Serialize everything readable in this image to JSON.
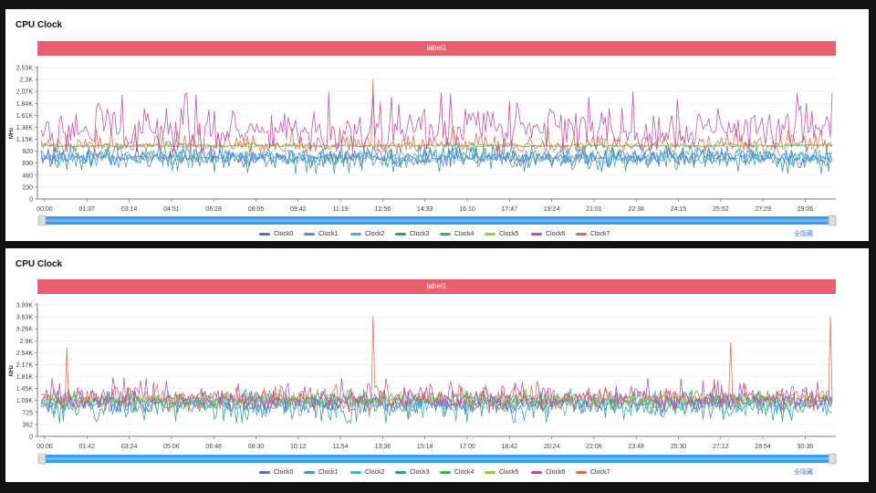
{
  "charts": [
    {
      "title": "CPU Clock",
      "label_bar": "label1",
      "hide_all": "全隐藏",
      "chart_data": {
        "type": "line",
        "ylabel": "MHz",
        "ylim": [
          0,
          2530
        ],
        "y_ticks": [
          "0",
          "230",
          "460",
          "690",
          "920",
          "1.15K",
          "1.38K",
          "1.61K",
          "1.84K",
          "2.07K",
          "2.3K",
          "2.53K"
        ],
        "x_ticks": [
          "00:00",
          "01:37",
          "03:14",
          "04:51",
          "06:28",
          "08:05",
          "09:42",
          "11:19",
          "12:56",
          "14:33",
          "16:10",
          "17:47",
          "19:24",
          "21:01",
          "22:38",
          "24:15",
          "25:52",
          "27:29",
          "29:06"
        ],
        "legend": [
          "Clock0",
          "Clock1",
          "Clock2",
          "Clock3",
          "Clock4",
          "Clock5",
          "Clock6",
          "Clock7"
        ],
        "colors": [
          "#5470c6",
          "#4a90e2",
          "#3fb1c9",
          "#2e9b8c",
          "#3fae5a",
          "#8fcf3c",
          "#c34aa8",
          "#e06a4f"
        ],
        "series": [
          {
            "name": "Clock0",
            "baseline": 780,
            "range": [
              600,
              1050
            ]
          },
          {
            "name": "Clock1",
            "baseline": 780,
            "range": [
              600,
              1050
            ]
          },
          {
            "name": "Clock2",
            "baseline": 780,
            "range": [
              600,
              1050
            ]
          },
          {
            "name": "Clock3",
            "baseline": 780,
            "range": [
              480,
              1050
            ]
          },
          {
            "name": "Clock4",
            "baseline": 1020,
            "range": [
              1000,
              1100
            ]
          },
          {
            "name": "Clock5",
            "baseline": 1020,
            "range": [
              1000,
              1100
            ]
          },
          {
            "name": "Clock6",
            "baseline": 1280,
            "range": [
              900,
              2070
            ],
            "spike": 1970
          },
          {
            "name": "Clock7",
            "baseline": 1020,
            "range": [
              900,
              1400
            ],
            "spike": 2300
          }
        ]
      }
    },
    {
      "title": "CPU Clock",
      "label_bar": "label1",
      "hide_all": "全隐藏",
      "chart_data": {
        "type": "line",
        "ylabel": "MHz",
        "ylim": [
          0,
          3990
        ],
        "y_ticks": [
          "0",
          "362",
          "725",
          "1.09K",
          "1.45K",
          "1.81K",
          "2.17K",
          "2.54K",
          "2.9K",
          "3.26K",
          "3.63K",
          "3.99K"
        ],
        "x_ticks": [
          "00:00",
          "01:42",
          "03:24",
          "05:06",
          "06:48",
          "08:30",
          "10:12",
          "11:54",
          "13:36",
          "15:18",
          "17:00",
          "18:42",
          "20:24",
          "22:06",
          "23:48",
          "25:30",
          "27:12",
          "28:54",
          "30:36"
        ],
        "legend": [
          "Clock0",
          "Clock1",
          "Clock2",
          "Clock3",
          "Clock4",
          "Clock5",
          "Clock6",
          "Clock7"
        ],
        "colors": [
          "#5470c6",
          "#4a90e2",
          "#3fb1c9",
          "#2e9b8c",
          "#3fae5a",
          "#8fcf3c",
          "#c34aa8",
          "#e06a4f"
        ],
        "series": [
          {
            "name": "Clock0",
            "baseline": 1000,
            "range": [
              700,
              1400
            ]
          },
          {
            "name": "Clock1",
            "baseline": 1000,
            "range": [
              700,
              1400
            ]
          },
          {
            "name": "Clock2",
            "baseline": 950,
            "range": [
              550,
              1400
            ]
          },
          {
            "name": "Clock3",
            "baseline": 900,
            "range": [
              400,
              1400
            ]
          },
          {
            "name": "Clock4",
            "baseline": 1100,
            "range": [
              800,
              1450
            ]
          },
          {
            "name": "Clock5",
            "baseline": 1100,
            "range": [
              800,
              1450
            ]
          },
          {
            "name": "Clock6",
            "baseline": 1150,
            "range": [
              800,
              1800
            ]
          },
          {
            "name": "Clock7",
            "baseline": 1100,
            "range": [
              750,
              1600
            ],
            "spike": 3630
          }
        ]
      }
    }
  ]
}
